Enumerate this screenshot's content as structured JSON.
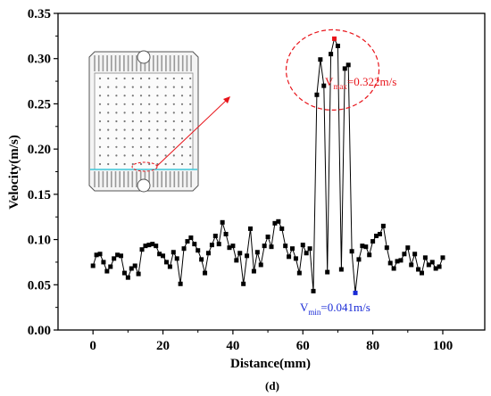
{
  "chart_data": {
    "type": "line",
    "title": "",
    "xlabel": "Distance(mm)",
    "ylabel": "Velocity(m/s)",
    "xlim": [
      -10,
      112
    ],
    "ylim": [
      0,
      0.35
    ],
    "xticks": [
      0,
      20,
      40,
      60,
      80,
      100
    ],
    "yticks": [
      0.0,
      0.05,
      0.1,
      0.15,
      0.2,
      0.25,
      0.3,
      0.35
    ],
    "xtick_labels": [
      "0",
      "20",
      "40",
      "60",
      "80",
      "100"
    ],
    "ytick_labels": [
      "0.00",
      "0.05",
      "0.10",
      "0.15",
      "0.20",
      "0.25",
      "0.30",
      "0.35"
    ],
    "grid": false,
    "legend": "none",
    "marker": "square",
    "line_color": "#000000",
    "max_color": "#e8141a",
    "min_color": "#1a2bd6",
    "highlight_color": "#e8141a",
    "x": [
      0,
      1,
      2,
      3,
      4,
      5,
      6,
      7,
      8,
      9,
      10,
      11,
      12,
      13,
      14,
      15,
      16,
      17,
      18,
      19,
      20,
      21,
      22,
      23,
      24,
      25,
      26,
      27,
      28,
      29,
      30,
      31,
      32,
      33,
      34,
      35,
      36,
      37,
      38,
      39,
      40,
      41,
      42,
      43,
      44,
      45,
      46,
      47,
      48,
      49,
      50,
      51,
      52,
      53,
      54,
      55,
      56,
      57,
      58,
      59,
      60,
      61,
      62,
      63,
      64,
      65,
      66,
      67,
      68,
      69,
      70,
      71,
      72,
      73,
      74,
      75,
      76,
      77,
      78,
      79,
      80,
      81,
      82,
      83,
      84,
      85,
      86,
      87,
      88,
      89,
      90,
      91,
      92,
      93,
      94,
      95,
      96,
      97,
      98,
      99,
      100
    ],
    "y": [
      0.071,
      0.083,
      0.084,
      0.075,
      0.065,
      0.07,
      0.079,
      0.083,
      0.082,
      0.063,
      0.058,
      0.068,
      0.071,
      0.062,
      0.089,
      0.093,
      0.094,
      0.095,
      0.093,
      0.084,
      0.082,
      0.075,
      0.07,
      0.086,
      0.079,
      0.051,
      0.09,
      0.098,
      0.102,
      0.095,
      0.088,
      0.078,
      0.063,
      0.085,
      0.094,
      0.104,
      0.095,
      0.119,
      0.106,
      0.091,
      0.093,
      0.077,
      0.085,
      0.051,
      0.082,
      0.112,
      0.065,
      0.086,
      0.072,
      0.093,
      0.103,
      0.092,
      0.118,
      0.12,
      0.112,
      0.093,
      0.081,
      0.09,
      0.079,
      0.063,
      0.094,
      0.085,
      0.09,
      0.043,
      0.26,
      0.299,
      0.27,
      0.064,
      0.305,
      0.322,
      0.314,
      0.067,
      0.289,
      0.293,
      0.087,
      0.041,
      0.078,
      0.093,
      0.092,
      0.083,
      0.098,
      0.104,
      0.106,
      0.115,
      0.091,
      0.074,
      0.068,
      0.076,
      0.077,
      0.084,
      0.091,
      0.072,
      0.084,
      0.067,
      0.063,
      0.08,
      0.072,
      0.075,
      0.068,
      0.07,
      0.08
    ],
    "max": {
      "x": 69,
      "y": 0.322,
      "label_base": "V",
      "label_sub": "max",
      "label_value": "=0.322m/s"
    },
    "min": {
      "x": 75,
      "y": 0.041,
      "label_base": "V",
      "label_sub": "min",
      "label_value": "=0.041m/s"
    }
  },
  "caption": "(d)"
}
